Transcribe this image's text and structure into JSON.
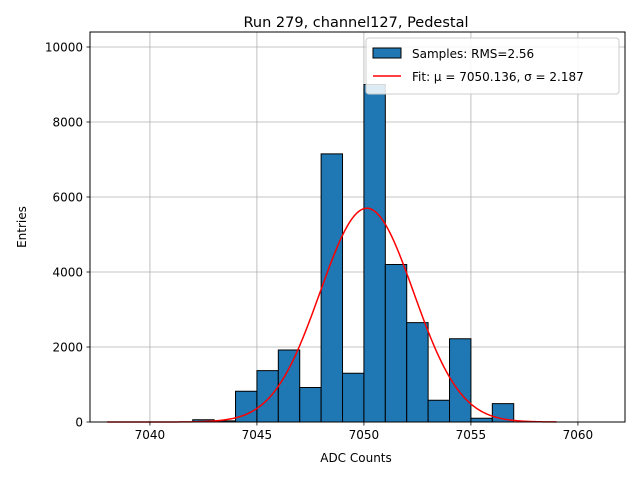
{
  "chart_data": {
    "type": "bar",
    "title": "Run 279, channel127, Pedestal",
    "xlabel": "ADC Counts",
    "ylabel": "Entries",
    "xlim": [
      7037.2,
      7062.2
    ],
    "ylim": [
      0,
      10400
    ],
    "x_ticks": [
      "7040",
      "7045",
      "7050",
      "7055",
      "7060"
    ],
    "x_tick_values": [
      7040,
      7045,
      7050,
      7055,
      7060
    ],
    "y_ticks": [
      "0",
      "2000",
      "4000",
      "6000",
      "8000",
      "10000"
    ],
    "y_tick_values": [
      0,
      2000,
      4000,
      6000,
      8000,
      10000
    ],
    "grid": true,
    "legend_position": "top-right",
    "bar_color": "#1f77b4",
    "fit_color": "#ff0000",
    "bin_width": 1,
    "bins": [
      {
        "left": 7042,
        "count": 60
      },
      {
        "left": 7043,
        "count": 30
      },
      {
        "left": 7044,
        "count": 820
      },
      {
        "left": 7045,
        "count": 1370
      },
      {
        "left": 7046,
        "count": 1920
      },
      {
        "left": 7047,
        "count": 920
      },
      {
        "left": 7048,
        "count": 7150
      },
      {
        "left": 7049,
        "count": 1300
      },
      {
        "left": 7050,
        "count": 9000
      },
      {
        "left": 7051,
        "count": 4200
      },
      {
        "left": 7052,
        "count": 2650
      },
      {
        "left": 7053,
        "count": 580
      },
      {
        "left": 7054,
        "count": 2220
      },
      {
        "left": 7055,
        "count": 100
      },
      {
        "left": 7056,
        "count": 490
      }
    ],
    "fit": {
      "mu": 7050.136,
      "sigma": 2.187,
      "amplitude": 5700,
      "x_range": [
        7038,
        7059
      ]
    },
    "legend": {
      "samples_label": "Samples: RMS=2.56",
      "fit_label": "Fit: μ = 7050.136, σ = 2.187"
    }
  }
}
